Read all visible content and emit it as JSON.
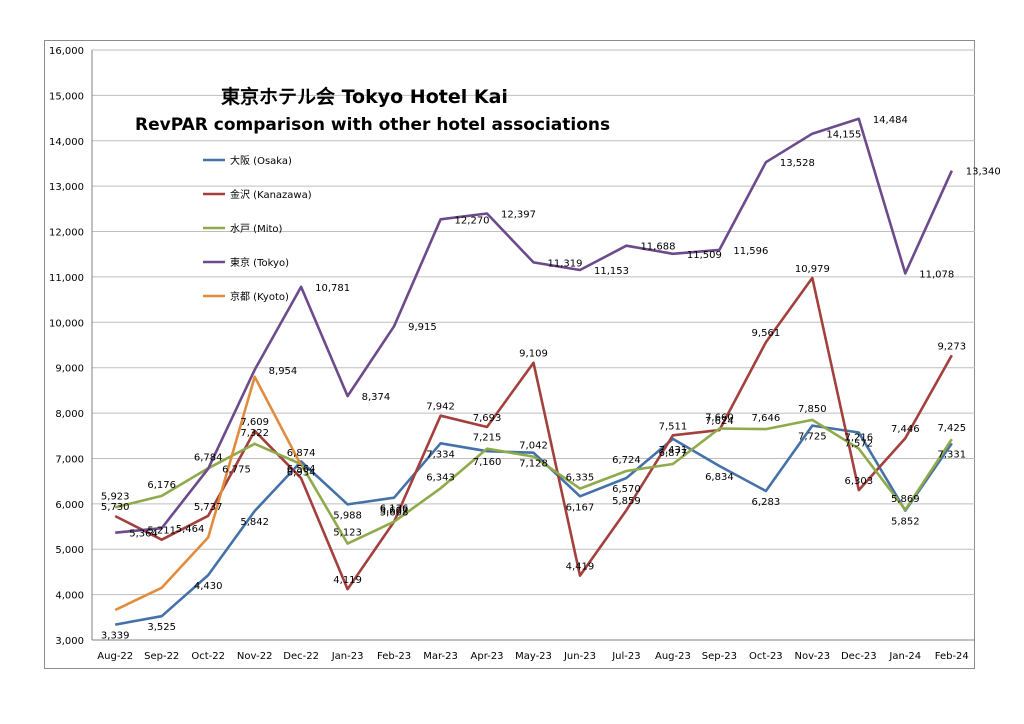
{
  "chart_data": {
    "type": "line",
    "title": "東京ホテル会  Tokyo Hotel Kai",
    "subtitle": "RevPAR comparison with other hotel associations",
    "xlabel": "",
    "ylabel": "",
    "ylim": [
      3000,
      16000
    ],
    "y_ticks": [
      "3,000",
      "4,000",
      "5,000",
      "6,000",
      "7,000",
      "8,000",
      "9,000",
      "10,000",
      "11,000",
      "12,000",
      "13,000",
      "14,000",
      "15,000",
      "16,000"
    ],
    "y_tick_values": [
      3000,
      4000,
      5000,
      6000,
      7000,
      8000,
      9000,
      10000,
      11000,
      12000,
      13000,
      14000,
      15000,
      16000
    ],
    "grid": true,
    "legend_position": "top-left",
    "categories": [
      "Aug-22",
      "Sep-22",
      "Oct-22",
      "Nov-22",
      "Dec-22",
      "Jan-23",
      "Feb-23",
      "Mar-23",
      "Apr-23",
      "May-23",
      "Jun-23",
      "Jul-23",
      "Aug-23",
      "Sep-23",
      "Oct-23",
      "Nov-23",
      "Dec-23",
      "Jan-24",
      "Feb-24"
    ],
    "series": [
      {
        "name": "大阪 (Osaka)",
        "color": "#4472a8",
        "values": [
          3339,
          3525,
          4430,
          5842,
          6934,
          5988,
          6136,
          7334,
          7160,
          7128,
          6167,
          6570,
          7431,
          6834,
          6283,
          7725,
          7572,
          5852,
          7331
        ],
        "labels": [
          "3,339",
          "3,525",
          "4,430",
          "5,842",
          "6,934",
          "5,988",
          "6,136",
          "7,334",
          "7,160",
          "7,128",
          "6,167",
          "6,570",
          "7,431",
          "6,834",
          "6,283",
          "7,725",
          "7,572",
          "5,852",
          "7,331"
        ]
      },
      {
        "name": "金沢 (Kanazawa)",
        "color": "#a3403d",
        "values": [
          5730,
          5211,
          5737,
          7609,
          6564,
          4119,
          5608,
          7942,
          7693,
          9109,
          4419,
          5859,
          7511,
          7624,
          9561,
          10979,
          6303,
          7446,
          9273
        ],
        "labels": [
          "5,730",
          "5,211",
          "5,737",
          "7,609",
          "6,564",
          "4,119",
          "5,608",
          "7,942",
          "7,693",
          "9,109",
          "4,419",
          "5,859",
          "7,511",
          "7,624",
          "9,561",
          "10,979",
          "6,303",
          "7,446",
          "9,273"
        ]
      },
      {
        "name": "水戸 (Mito)",
        "color": "#8faa4a",
        "values": [
          5923,
          6176,
          6784,
          7322,
          6874,
          5123,
          5607,
          6343,
          7215,
          7042,
          6335,
          6724,
          6877,
          7660,
          7646,
          7850,
          7216,
          5869,
          7425
        ],
        "labels": [
          "5,923",
          "6,176",
          "6,784",
          "7,322",
          "6,874",
          "5,123",
          "5,607",
          "6,343",
          "7,215",
          "7,042",
          "6,335",
          "6,724",
          "6,877",
          "7,660",
          "7,646",
          "7,850",
          "7,216",
          "5,869",
          "7,425"
        ]
      },
      {
        "name": "東京 (Tokyo)",
        "color": "#6d4a8c",
        "values": [
          5364,
          5464,
          6775,
          8954,
          10781,
          8374,
          9915,
          12270,
          12397,
          11319,
          11153,
          11688,
          11509,
          11596,
          13528,
          14155,
          14484,
          11078,
          13340
        ],
        "labels": [
          "5,364",
          "5,464",
          "6,775",
          "8,954",
          "10,781",
          "8,374",
          "9,915",
          "12,270",
          "12,397",
          "11,319",
          "11,153",
          "11,688",
          "11,509",
          "11,596",
          "13,528",
          "14,155",
          "14,484",
          "11,078",
          "13,340"
        ]
      },
      {
        "name": "京都 (Kyoto)",
        "color": "#e08c3c",
        "values": [
          3660,
          4150,
          5260,
          8800,
          6850,
          null,
          null,
          null,
          null,
          null,
          null,
          null,
          null,
          null,
          null,
          null,
          null,
          null,
          null
        ],
        "labels": []
      }
    ]
  }
}
